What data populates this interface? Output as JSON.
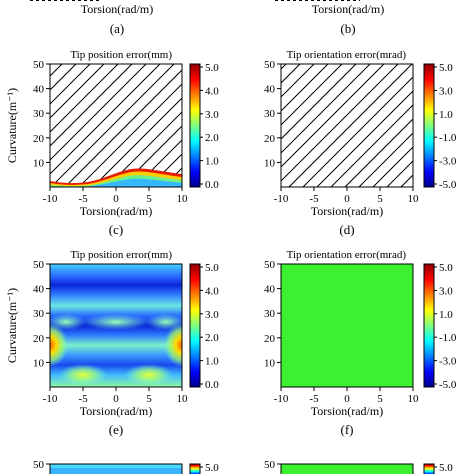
{
  "figure": {
    "top_cut_xlabels": [
      "Torsion(rad/m)",
      "Torsion(rad/m)"
    ],
    "top_cut_captions": [
      "(a)",
      "(b)"
    ]
  },
  "chart_data": [
    {
      "id": "c",
      "type": "heatmap",
      "title": "Tip position error(mm)",
      "xlabel": "Torsion(rad/m)",
      "ylabel": "Curvature(m⁻¹)",
      "caption": "(c)",
      "xlim": [
        -10,
        10
      ],
      "ylim": [
        0,
        50
      ],
      "xticks": [
        -10,
        -5,
        0,
        5,
        10
      ],
      "yticks": [
        10,
        20,
        30,
        40,
        50
      ],
      "colorbar_ticks": [
        "5.0",
        "4.0",
        "3.0",
        "2.0",
        "1.0",
        "0.0"
      ],
      "colorbar_range": [
        0,
        5
      ],
      "hatched_invalid_region": true,
      "valid_boundary": {
        "x": [
          -10,
          -8,
          -6,
          -4,
          -2,
          0,
          1,
          2,
          3,
          4,
          6,
          8,
          10
        ],
        "y": [
          3.5,
          2.5,
          2.0,
          2.5,
          3.5,
          5.0,
          6.0,
          6.8,
          7.0,
          6.8,
          5.5,
          4.8,
          5.0
        ]
      },
      "field": {
        "pattern": "edge-gradient",
        "values_near_boundary": 5.0,
        "values_at_base": 0.0
      }
    },
    {
      "id": "d",
      "type": "heatmap",
      "title": "Tip orientation error(mrad)",
      "xlabel": "Torsion(rad/m)",
      "ylabel": "",
      "caption": "(d)",
      "xlim": [
        -10,
        10
      ],
      "ylim": [
        0,
        50
      ],
      "xticks": [
        -10,
        -5,
        0,
        5,
        10
      ],
      "yticks": [
        10,
        20,
        30,
        40,
        50
      ],
      "colorbar_ticks": [
        "5.0",
        "3.0",
        "1.0",
        "-1.0",
        "-3.0",
        "-5.0"
      ],
      "colorbar_range": [
        -5,
        5
      ],
      "hatched_invalid_region": true,
      "valid_boundary": {
        "x": [
          -10,
          10
        ],
        "y": [
          0,
          0
        ]
      }
    },
    {
      "id": "e",
      "type": "heatmap",
      "title": "Tip position error(mm)",
      "xlabel": "Torsion(rad/m)",
      "ylabel": "Curvature(m⁻¹)",
      "caption": "(e)",
      "xlim": [
        -10,
        10
      ],
      "ylim": [
        0,
        50
      ],
      "xticks": [
        -10,
        -5,
        0,
        5,
        10
      ],
      "yticks": [
        10,
        20,
        30,
        40,
        50
      ],
      "colorbar_ticks": [
        "5.0",
        "4.0",
        "3.0",
        "2.0",
        "1.0",
        "0.0"
      ],
      "colorbar_range": [
        0,
        5
      ],
      "field": {
        "pattern": "periodic-bands",
        "low_error_bands_y": [
          5,
          25,
          42
        ],
        "high_error_spots": [
          {
            "x": -10,
            "y": 17,
            "value": 4.6
          },
          {
            "x": 10,
            "y": 17,
            "value": 4.6
          },
          {
            "x": -5,
            "y": 5,
            "value": 3.8
          },
          {
            "x": 5,
            "y": 5,
            "value": 3.8
          },
          {
            "x": 0,
            "y": 30,
            "value": 2.8
          }
        ]
      }
    },
    {
      "id": "f",
      "type": "heatmap",
      "title": "Tip orientation error(mrad)",
      "xlabel": "Torsion(rad/m)",
      "ylabel": "",
      "caption": "(f)",
      "xlim": [
        -10,
        10
      ],
      "ylim": [
        0,
        50
      ],
      "xticks": [
        -10,
        -5,
        0,
        5,
        10
      ],
      "yticks": [
        10,
        20,
        30,
        40,
        50
      ],
      "colorbar_ticks": [
        "5.0",
        "3.0",
        "1.0",
        "-1.0",
        "-3.0",
        "-5.0"
      ],
      "colorbar_range": [
        -5,
        5
      ],
      "field": {
        "pattern": "uniform",
        "value": 0.0
      }
    },
    {
      "id": "g",
      "type": "heatmap",
      "title": "",
      "ylabel": "",
      "xlim": [
        -10,
        10
      ],
      "ylim": [
        0,
        50
      ],
      "yticks": [
        50
      ],
      "colorbar_ticks": [
        "5.0"
      ],
      "colorbar_range": [
        0,
        5
      ],
      "cut_off": true
    },
    {
      "id": "h",
      "type": "heatmap",
      "title": "",
      "ylabel": "",
      "xlim": [
        -10,
        10
      ],
      "ylim": [
        0,
        50
      ],
      "yticks": [
        50
      ],
      "colorbar_ticks": [
        "5.0"
      ],
      "colorbar_range": [
        -5,
        5
      ],
      "cut_off": true
    }
  ]
}
